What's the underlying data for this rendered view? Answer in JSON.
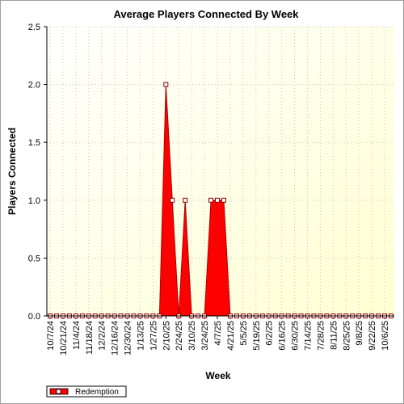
{
  "chart_data": {
    "type": "area",
    "title": "Average Players Connected By Week",
    "xlabel": "Week",
    "ylabel": "Players Connected",
    "ylim": [
      0,
      2.5
    ],
    "y_ticks": [
      "0.0",
      "0.5",
      "1.0",
      "1.5",
      "2.0",
      "2.5"
    ],
    "x_tick_labels": [
      "10/7/24",
      "10/21/24",
      "11/4/24",
      "11/18/24",
      "12/2/24",
      "12/16/24",
      "12/30/24",
      "1/13/25",
      "1/27/25",
      "2/10/25",
      "2/24/25",
      "3/10/25",
      "3/24/25",
      "4/7/25",
      "4/21/25",
      "5/5/25",
      "5/19/25",
      "6/2/25",
      "6/16/25",
      "6/30/25",
      "7/14/25",
      "7/28/25",
      "8/11/25",
      "8/25/25",
      "9/8/25",
      "9/22/25",
      "10/6/25"
    ],
    "grid": true,
    "legend_position": "bottom-left",
    "series": [
      {
        "name": "Redemption",
        "color": "#ff0000",
        "x": [
          "10/7/24",
          "10/14/24",
          "10/21/24",
          "10/28/24",
          "11/4/24",
          "11/11/24",
          "11/18/24",
          "11/25/24",
          "12/2/24",
          "12/9/24",
          "12/16/24",
          "12/23/24",
          "12/30/24",
          "1/6/25",
          "1/13/25",
          "1/20/25",
          "1/27/25",
          "2/3/25",
          "2/10/25",
          "2/17/25",
          "2/24/25",
          "3/3/25",
          "3/10/25",
          "3/17/25",
          "3/24/25",
          "3/31/25",
          "4/7/25",
          "4/14/25",
          "4/21/25",
          "4/28/25",
          "5/5/25",
          "5/12/25",
          "5/19/25",
          "5/26/25",
          "6/2/25",
          "6/9/25",
          "6/16/25",
          "6/23/25",
          "6/30/25",
          "7/7/25",
          "7/14/25",
          "7/21/25",
          "7/28/25",
          "8/4/25",
          "8/11/25",
          "8/18/25",
          "8/25/25",
          "9/1/25",
          "9/8/25",
          "9/15/25",
          "9/22/25",
          "9/29/25",
          "10/6/25",
          "10/13/25"
        ],
        "values": [
          0,
          0,
          0,
          0,
          0,
          0,
          0,
          0,
          0,
          0,
          0,
          0,
          0,
          0,
          0,
          0,
          0,
          0,
          2,
          1,
          0,
          1,
          0,
          0,
          0,
          1,
          1,
          1,
          0,
          0,
          0,
          0,
          0,
          0,
          0,
          0,
          0,
          0,
          0,
          0,
          0,
          0,
          0,
          0,
          0,
          0,
          0,
          0,
          0,
          0,
          0,
          0,
          0,
          0
        ]
      }
    ]
  }
}
